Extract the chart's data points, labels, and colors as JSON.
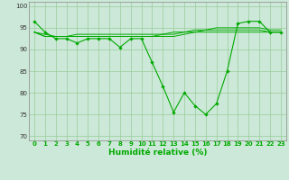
{
  "xlabel": "Humidité relative (%)",
  "bg_color": "#cce8d8",
  "grid_color": "#99cc99",
  "line_color": "#00aa00",
  "xlim": [
    -0.5,
    23.5
  ],
  "ylim": [
    69,
    101
  ],
  "yticks": [
    70,
    75,
    80,
    85,
    90,
    95,
    100
  ],
  "xticks": [
    0,
    1,
    2,
    3,
    4,
    5,
    6,
    7,
    8,
    9,
    10,
    11,
    12,
    13,
    14,
    15,
    16,
    17,
    18,
    19,
    20,
    21,
    22,
    23
  ],
  "xlabels": [
    "0",
    "1",
    "2",
    "3",
    "4",
    "5",
    "6",
    "7",
    "8",
    "9",
    "10",
    "11",
    "12",
    "13",
    "14",
    "15",
    "16",
    "17",
    "18",
    "19",
    "20",
    "21",
    "22",
    "23"
  ],
  "series1": [
    96.5,
    94,
    92.5,
    92.5,
    91.5,
    92.5,
    92.5,
    92.5,
    90.5,
    92.5,
    92.5,
    87,
    81.5,
    75.5,
    80,
    77,
    75,
    77.5,
    85,
    96,
    96.5,
    96.5,
    94,
    94
  ],
  "series2": [
    94,
    93,
    93,
    93,
    93,
    93,
    93,
    93,
    93,
    93,
    93,
    93,
    93.5,
    93.5,
    94,
    94,
    94.5,
    94.5,
    94.5,
    94.5,
    94.5,
    94.5,
    94,
    94
  ],
  "series3": [
    94,
    93.5,
    93,
    93,
    93.5,
    93.5,
    93.5,
    93.5,
    93.5,
    93.5,
    93.5,
    93.5,
    93.5,
    94,
    94,
    94.5,
    94.5,
    95,
    95,
    95,
    95,
    95,
    94.5,
    94.5
  ],
  "series4": [
    94,
    93,
    93,
    93,
    93,
    93,
    93,
    93,
    93,
    93,
    93,
    93,
    93,
    93,
    93.5,
    94,
    94,
    94,
    94,
    94,
    94,
    94,
    94,
    94
  ],
  "tick_fontsize": 5.0,
  "xlabel_fontsize": 6.5
}
